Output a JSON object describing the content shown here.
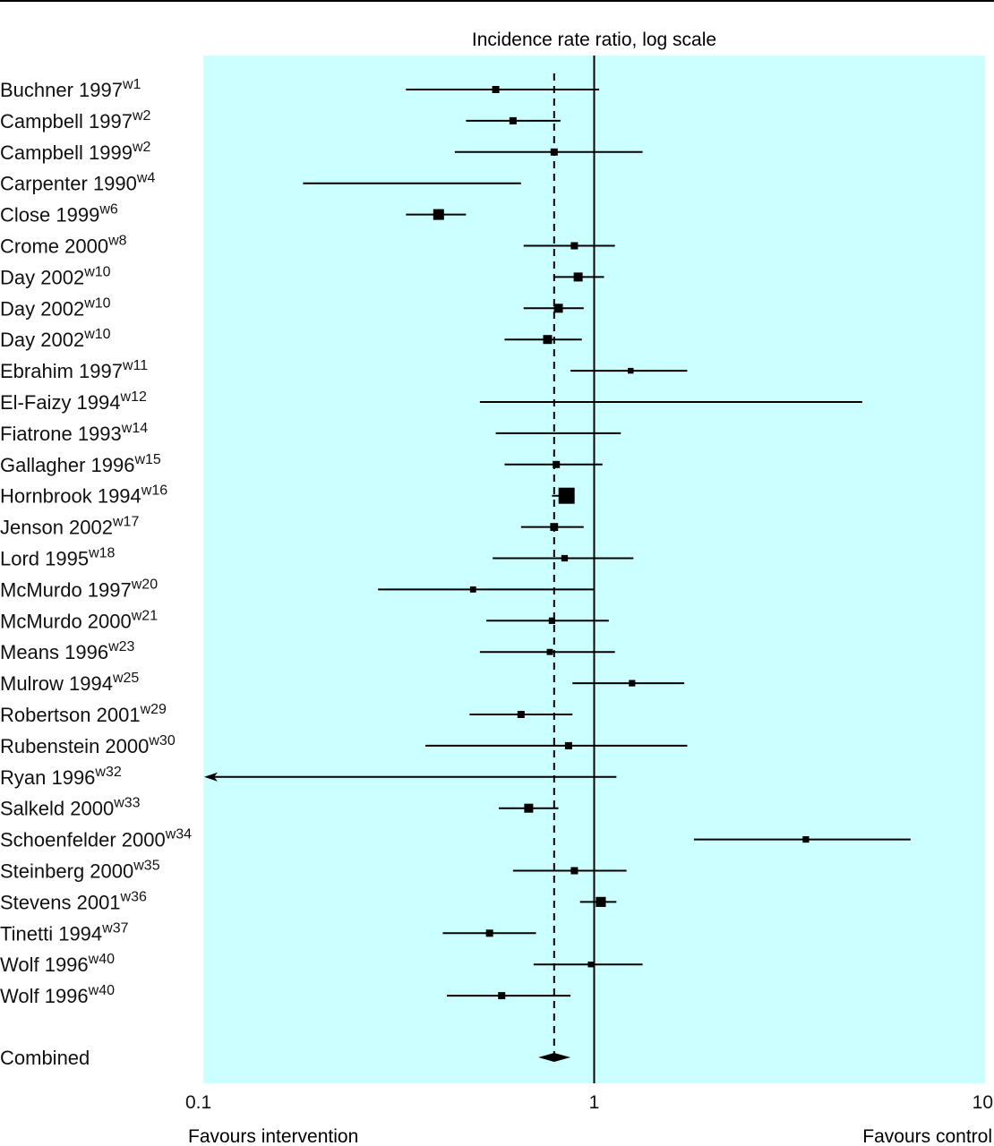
{
  "chart_data": {
    "type": "forest",
    "xlabel": "Incidence rate ratio, log scale",
    "xscale": "log",
    "xlim": [
      0.1,
      10
    ],
    "xticks": [
      {
        "value": 0.1,
        "label": "0.1"
      },
      {
        "value": 1,
        "label": "1"
      },
      {
        "value": 10,
        "label": "10"
      }
    ],
    "left_caption": "Favours intervention",
    "right_caption": "Favours control",
    "reference_line": 1,
    "pooled_line": 0.79,
    "background_color": "#ccffff",
    "studies": [
      {
        "name": "Buchner 1997",
        "ref": "w1",
        "estimate": 0.56,
        "lower": 0.33,
        "upper": 1.03,
        "weight": 1
      },
      {
        "name": "Campbell 1997",
        "ref": "w2",
        "estimate": 0.62,
        "lower": 0.47,
        "upper": 0.82,
        "weight": 1
      },
      {
        "name": "Campbell 1999",
        "ref": "w2",
        "estimate": 0.79,
        "lower": 0.44,
        "upper": 1.33,
        "weight": 1
      },
      {
        "name": "Carpenter 1990",
        "ref": "w4",
        "estimate": null,
        "lower": 0.18,
        "upper": 0.65,
        "weight": 0
      },
      {
        "name": "Close 1999",
        "ref": "w6",
        "estimate": 0.4,
        "lower": 0.33,
        "upper": 0.47,
        "weight": 2
      },
      {
        "name": "Crome 2000",
        "ref": "w8",
        "estimate": 0.89,
        "lower": 0.66,
        "upper": 1.13,
        "weight": 1
      },
      {
        "name": "Day 2002",
        "ref": "w10",
        "estimate": 0.91,
        "lower": 0.79,
        "upper": 1.06,
        "weight": 1.5
      },
      {
        "name": "Day 2002",
        "ref": "w10",
        "estimate": 0.81,
        "lower": 0.66,
        "upper": 0.94,
        "weight": 1.5
      },
      {
        "name": "Day 2002",
        "ref": "w10",
        "estimate": 0.76,
        "lower": 0.59,
        "upper": 0.93,
        "weight": 1.5
      },
      {
        "name": "Ebrahim 1997",
        "ref": "w11",
        "estimate": 1.24,
        "lower": 0.87,
        "upper": 1.73,
        "weight": 0.6
      },
      {
        "name": "El-Faizy 1994",
        "ref": "w12",
        "estimate": null,
        "lower": 0.51,
        "upper": 4.85,
        "weight": 0
      },
      {
        "name": "Fiatrone 1993",
        "ref": "w14",
        "estimate": null,
        "lower": 0.56,
        "upper": 1.17,
        "weight": 0
      },
      {
        "name": "Gallagher 1996",
        "ref": "w15",
        "estimate": 0.8,
        "lower": 0.59,
        "upper": 1.05,
        "weight": 1
      },
      {
        "name": "Hornbrook 1994",
        "ref": "w16",
        "estimate": 0.85,
        "lower": 0.78,
        "upper": 0.87,
        "weight": 3.5
      },
      {
        "name": "Jenson 2002",
        "ref": "w17",
        "estimate": 0.79,
        "lower": 0.65,
        "upper": 0.94,
        "weight": 1.2
      },
      {
        "name": "Lord 1995",
        "ref": "w18",
        "estimate": 0.84,
        "lower": 0.55,
        "upper": 1.26,
        "weight": 0.8
      },
      {
        "name": "McMurdo 1997",
        "ref": "w20",
        "estimate": 0.49,
        "lower": 0.28,
        "upper": 1.0,
        "weight": 0.7
      },
      {
        "name": "McMurdo 2000",
        "ref": "w21",
        "estimate": 0.78,
        "lower": 0.53,
        "upper": 1.09,
        "weight": 0.8
      },
      {
        "name": "Means 1996",
        "ref": "w23",
        "estimate": 0.77,
        "lower": 0.51,
        "upper": 1.13,
        "weight": 0.7
      },
      {
        "name": "Mulrow 1994",
        "ref": "w25",
        "estimate": 1.25,
        "lower": 0.88,
        "upper": 1.7,
        "weight": 0.8
      },
      {
        "name": "Robertson 2001",
        "ref": "w29",
        "estimate": 0.65,
        "lower": 0.48,
        "upper": 0.88,
        "weight": 1
      },
      {
        "name": "Rubenstein 2000",
        "ref": "w30",
        "estimate": 0.86,
        "lower": 0.37,
        "upper": 1.73,
        "weight": 1
      },
      {
        "name": "Ryan 1996",
        "ref": "w32",
        "estimate": null,
        "lower": 0.1,
        "upper": 1.14,
        "weight": 0,
        "arrow_left": true
      },
      {
        "name": "Salkeld 2000",
        "ref": "w33",
        "estimate": 0.68,
        "lower": 0.57,
        "upper": 0.81,
        "weight": 1.5
      },
      {
        "name": "Schoenfelder 2000",
        "ref": "w34",
        "estimate": 3.48,
        "lower": 1.8,
        "upper": 6.45,
        "weight": 0.8
      },
      {
        "name": "Steinberg 2000",
        "ref": "w35",
        "estimate": 0.89,
        "lower": 0.62,
        "upper": 1.21,
        "weight": 1
      },
      {
        "name": "Stevens 2001",
        "ref": "w36",
        "estimate": 1.04,
        "lower": 0.92,
        "upper": 1.14,
        "weight": 1.8
      },
      {
        "name": "Tinetti 1994",
        "ref": "w37",
        "estimate": 0.54,
        "lower": 0.41,
        "upper": 0.71,
        "weight": 1
      },
      {
        "name": "Wolf 1996",
        "ref": "w40",
        "estimate": 0.98,
        "lower": 0.7,
        "upper": 1.33,
        "weight": 0.6
      },
      {
        "name": "Wolf 1996",
        "ref": "w40",
        "estimate": 0.58,
        "lower": 0.42,
        "upper": 0.87,
        "weight": 1
      }
    ],
    "combined": {
      "label": "Combined",
      "estimate": 0.79,
      "lower": 0.72,
      "upper": 0.87
    }
  }
}
